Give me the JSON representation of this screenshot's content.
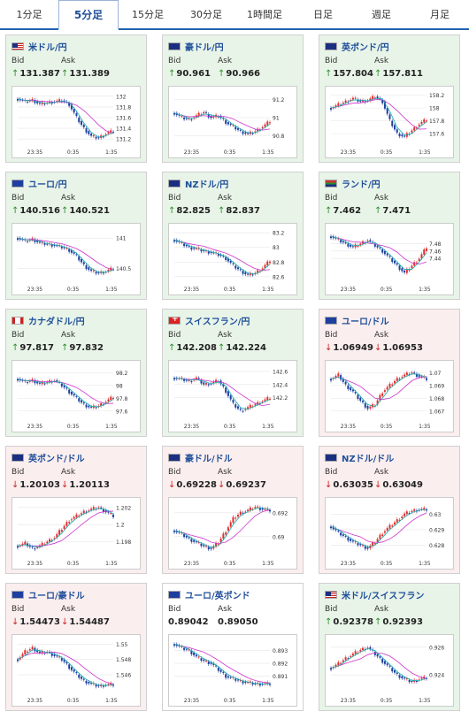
{
  "tabs": [
    "1分足",
    "5分足",
    "15分足",
    "30分足",
    "1時間足",
    "日足",
    "週足",
    "月足"
  ],
  "active_tab_index": 1,
  "labels": {
    "bid": "Bid",
    "ask": "Ask"
  },
  "x_ticks": [
    "23:35",
    "0:35",
    "1:35"
  ],
  "colors": {
    "up_bg": "#e8f4e8",
    "down_bg": "#fbeeee",
    "up_arrow": "#2a8f2a",
    "down_arrow": "#cc2222",
    "candle_up": "#e03030",
    "candle_down": "#1f3fa0",
    "ma": "#cc33cc",
    "ma2": "#1ab0b0",
    "title": "#1f4f9a"
  },
  "cards": [
    {
      "pair": "米ドル/円",
      "dir": "up",
      "bid": "131.387",
      "ask": "131.389",
      "flag": "us-jp",
      "trend": [
        131.95,
        131.9,
        131.93,
        131.85,
        131.88,
        131.9,
        131.92,
        131.85,
        131.6,
        131.4,
        131.25,
        131.22,
        131.3,
        131.35
      ],
      "yticks": [
        "132",
        "131.8",
        "131.6",
        "131.4",
        "131.2"
      ],
      "ylim": [
        131.12,
        132.08
      ]
    },
    {
      "pair": "豪ドル/円",
      "dir": "up",
      "bid": "90.961",
      "ask": "90.966",
      "flag": "au-jp",
      "trend": [
        91.05,
        91.0,
        90.98,
        91.02,
        91.06,
        91.0,
        91.02,
        90.95,
        90.9,
        90.85,
        90.82,
        90.85,
        90.9,
        90.96
      ],
      "yticks": [
        "91.2",
        "91",
        "90.8"
      ],
      "ylim": [
        90.72,
        91.28
      ]
    },
    {
      "pair": "英ポンド/円",
      "dir": "up",
      "bid": "157.804",
      "ask": "157.811",
      "flag": "gb-jp",
      "trend": [
        158.0,
        158.05,
        158.1,
        158.15,
        158.1,
        158.12,
        158.18,
        158.1,
        157.8,
        157.6,
        157.55,
        157.65,
        157.75,
        157.82
      ],
      "yticks": [
        "158.2",
        "158",
        "157.8",
        "157.6"
      ],
      "ylim": [
        157.45,
        158.25
      ]
    },
    {
      "pair": "ユーロ/円",
      "dir": "up",
      "bid": "140.516",
      "ask": "140.521",
      "flag": "eu-jp",
      "trend": [
        141.0,
        140.95,
        140.98,
        140.92,
        140.9,
        140.88,
        140.85,
        140.8,
        140.7,
        140.55,
        140.45,
        140.42,
        140.45,
        140.5
      ],
      "yticks": [
        "141",
        "140.5"
      ],
      "ylim": [
        140.3,
        141.15
      ]
    },
    {
      "pair": "NZドル/円",
      "dir": "up",
      "bid": "82.825",
      "ask": "82.837",
      "flag": "nz-jp",
      "trend": [
        83.1,
        83.05,
        83.0,
        82.98,
        82.95,
        82.93,
        82.9,
        82.85,
        82.75,
        82.68,
        82.62,
        82.65,
        82.72,
        82.82
      ],
      "yticks": [
        "83.2",
        "83",
        "82.8",
        "82.6"
      ],
      "ylim": [
        82.55,
        83.25
      ]
    },
    {
      "pair": "ランド/円",
      "dir": "up",
      "bid": "7.462",
      "ask": "7.471",
      "flag": "za-jp",
      "trend": [
        7.5,
        7.49,
        7.48,
        7.47,
        7.48,
        7.49,
        7.475,
        7.46,
        7.44,
        7.42,
        7.4,
        7.42,
        7.44,
        7.47
      ],
      "yticks": [
        "7.48",
        "7.46",
        "7.44"
      ],
      "ylim": [
        7.38,
        7.52
      ]
    },
    {
      "pair": "カナダドル/円",
      "dir": "up",
      "bid": "97.817",
      "ask": "97.832",
      "flag": "ca-jp",
      "trend": [
        98.1,
        98.05,
        98.08,
        98.02,
        98.05,
        98.08,
        98.0,
        97.9,
        97.8,
        97.7,
        97.65,
        97.68,
        97.75,
        97.82
      ],
      "yticks": [
        "98.2",
        "98",
        "97.8",
        "97.6"
      ],
      "ylim": [
        97.5,
        98.3
      ]
    },
    {
      "pair": "スイスフラン/円",
      "dir": "up",
      "bid": "142.208",
      "ask": "142.224",
      "flag": "ch-jp",
      "trend": [
        142.5,
        142.48,
        142.45,
        142.5,
        142.4,
        142.42,
        142.46,
        142.3,
        142.1,
        142.0,
        142.05,
        142.1,
        142.15,
        142.2
      ],
      "yticks": [
        "142.6",
        "142.4",
        "142.2"
      ],
      "ylim": [
        141.9,
        142.68
      ]
    },
    {
      "pair": "ユーロ/ドル",
      "dir": "down",
      "bid": "1.06949",
      "ask": "1.06953",
      "flag": "eu-us",
      "trend": [
        1.0695,
        1.0698,
        1.069,
        1.0685,
        1.0678,
        1.0672,
        1.0675,
        1.0685,
        1.069,
        1.0695,
        1.0698,
        1.07,
        1.0697,
        1.0695
      ],
      "yticks": [
        "1.07",
        "1.069",
        "1.068",
        "1.067"
      ],
      "ylim": [
        1.0665,
        1.0705
      ]
    },
    {
      "pair": "英ポンド/ドル",
      "dir": "down",
      "bid": "1.20103",
      "ask": "1.20113",
      "flag": "gb-us",
      "trend": [
        1.1975,
        1.1978,
        1.1972,
        1.1975,
        1.198,
        1.1985,
        1.1995,
        1.2005,
        1.201,
        1.2015,
        1.2018,
        1.202,
        1.2015,
        1.201
      ],
      "yticks": [
        "1.202",
        "1.2",
        "1.198"
      ],
      "ylim": [
        1.1965,
        1.2025
      ]
    },
    {
      "pair": "豪ドル/ドル",
      "dir": "down",
      "bid": "0.69228",
      "ask": "0.69237",
      "flag": "au-us",
      "trend": [
        0.6905,
        0.6902,
        0.6898,
        0.6895,
        0.6892,
        0.689,
        0.6895,
        0.6905,
        0.6915,
        0.692,
        0.6922,
        0.6925,
        0.6923,
        0.6922
      ],
      "yticks": [
        "0.692",
        "0.69"
      ],
      "ylim": [
        0.6885,
        0.6928
      ]
    },
    {
      "pair": "NZドル/ドル",
      "dir": "down",
      "bid": "0.63035",
      "ask": "0.63049",
      "flag": "nz-us",
      "trend": [
        0.6292,
        0.6288,
        0.6285,
        0.6282,
        0.628,
        0.6278,
        0.6282,
        0.6288,
        0.6292,
        0.6296,
        0.63,
        0.6302,
        0.6303,
        0.6303
      ],
      "yticks": [
        "0.63",
        "0.629",
        "0.628"
      ],
      "ylim": [
        0.6274,
        0.6307
      ]
    },
    {
      "pair": "ユーロ/豪ドル",
      "dir": "down",
      "bid": "1.54473",
      "ask": "1.54487",
      "flag": "eu-au",
      "trend": [
        1.548,
        1.549,
        1.5495,
        1.5488,
        1.549,
        1.5485,
        1.548,
        1.547,
        1.546,
        1.5452,
        1.5448,
        1.5445,
        1.5447,
        1.5447
      ],
      "yticks": [
        "1.55",
        "1.548",
        "1.546"
      ],
      "ylim": [
        1.5438,
        1.5505
      ]
    },
    {
      "pair": "ユーロ/英ポンド",
      "dir": "flat",
      "bid": "0.89042",
      "ask": "0.89050",
      "flag": "eu-gb",
      "trend": [
        0.8935,
        0.8932,
        0.893,
        0.8925,
        0.8922,
        0.892,
        0.8915,
        0.891,
        0.8908,
        0.8906,
        0.8905,
        0.8904,
        0.8904,
        0.8904
      ],
      "yticks": [
        "0.893",
        "0.892",
        "0.891"
      ],
      "ylim": [
        0.8898,
        0.8938
      ]
    },
    {
      "pair": "米ドル/スイスフラン",
      "dir": "up",
      "bid": "0.92378",
      "ask": "0.92393",
      "flag": "us-ch",
      "trend": [
        0.9245,
        0.9248,
        0.9252,
        0.9255,
        0.9258,
        0.926,
        0.9255,
        0.925,
        0.9245,
        0.924,
        0.9237,
        0.9235,
        0.9237,
        0.9238
      ],
      "yticks": [
        "0.926",
        "0.924"
      ],
      "ylim": [
        0.9228,
        0.9265
      ]
    }
  ]
}
